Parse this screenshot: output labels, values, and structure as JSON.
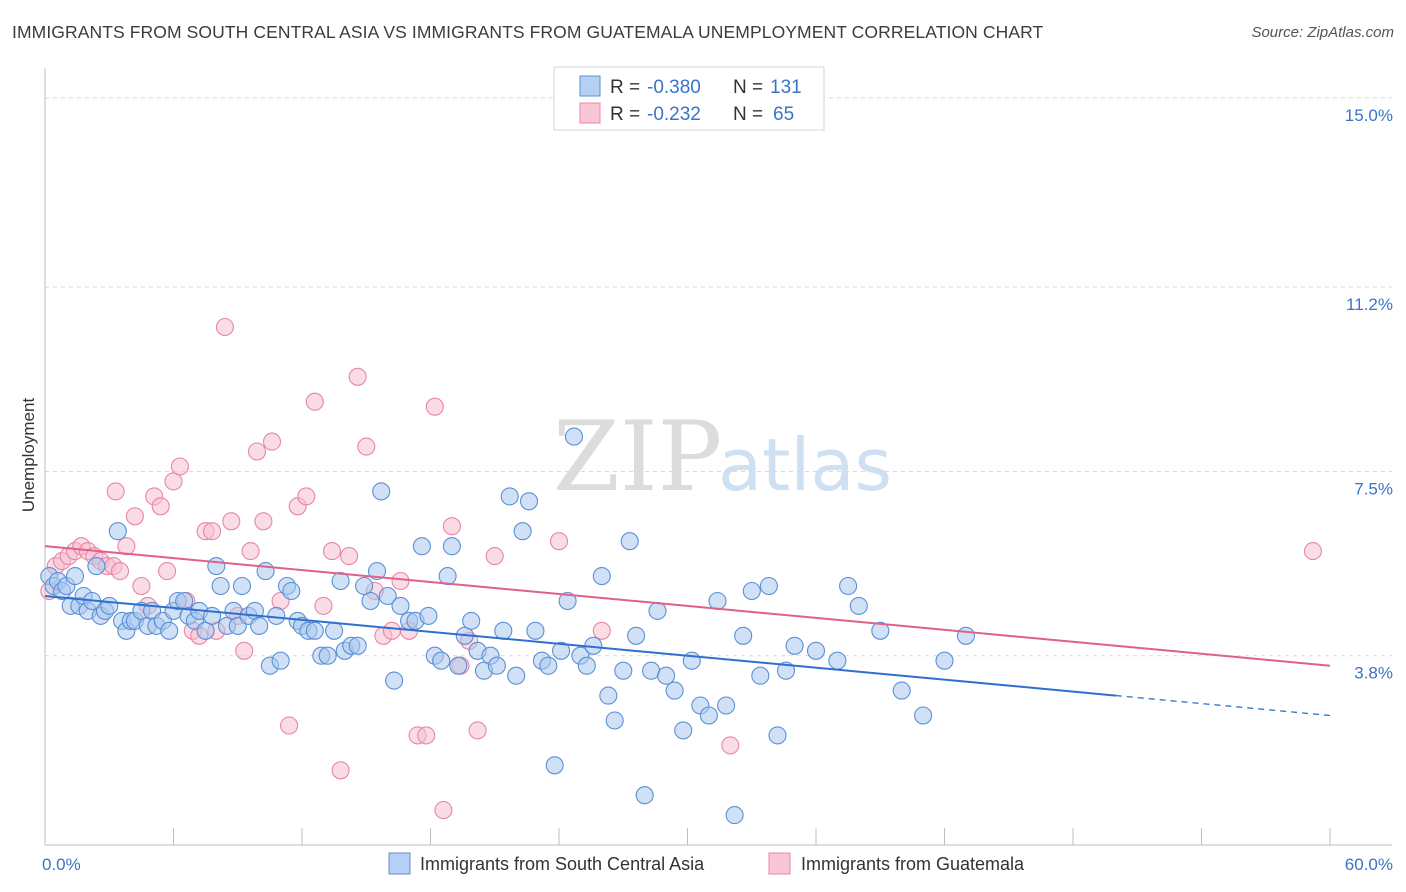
{
  "title": "IMMIGRANTS FROM SOUTH CENTRAL ASIA VS IMMIGRANTS FROM GUATEMALA UNEMPLOYMENT CORRELATION CHART",
  "source": "Source: ZipAtlas.com",
  "watermark": {
    "zip": "ZIP",
    "atlas": "atlas"
  },
  "legend": {
    "r_label": "R =",
    "n_label": "N =",
    "rows": [
      {
        "r": "-0.380",
        "n": "131",
        "color": "#5b8fd6"
      },
      {
        "r": "-0.232",
        "n": "65",
        "color": "#e886a6"
      }
    ]
  },
  "colors": {
    "blue_fill": "#a9c8ef",
    "blue_stroke": "#5b8fd6",
    "blue_line": "#2f6fd0",
    "pink_fill": "#f6bfd0",
    "pink_stroke": "#e886a6",
    "pink_line": "#e0608c",
    "tick_text": "#3a73c8"
  },
  "chart_data": {
    "type": "scatter",
    "title": "IMMIGRANTS FROM SOUTH CENTRAL ASIA VS IMMIGRANTS FROM GUATEMALA UNEMPLOYMENT CORRELATION CHART",
    "xlabel": "",
    "ylabel": "Unemployment",
    "x_tick_labels": [
      "0.0%",
      "60.0%"
    ],
    "y_tick_labels": [
      "3.8%",
      "7.5%",
      "11.2%",
      "15.0%"
    ],
    "y_ticks": [
      3.8,
      7.5,
      11.2,
      15.0
    ],
    "xlim": [
      0,
      60
    ],
    "ylim": [
      0,
      15.4
    ],
    "grid": true,
    "legend_position": "top-center",
    "series": [
      {
        "name": "Immigrants from South Central Asia",
        "color": "#5b8fd6",
        "trend": {
          "x0": 0,
          "y0": 5.0,
          "x1": 60,
          "y1": 2.6,
          "solid_until": 50
        },
        "points": [
          [
            0.2,
            5.4
          ],
          [
            0.4,
            5.2
          ],
          [
            0.6,
            5.3
          ],
          [
            0.8,
            5.1
          ],
          [
            1.0,
            5.2
          ],
          [
            1.2,
            4.8
          ],
          [
            1.4,
            5.4
          ],
          [
            1.6,
            4.8
          ],
          [
            1.8,
            5.0
          ],
          [
            2.0,
            4.7
          ],
          [
            2.2,
            4.9
          ],
          [
            2.4,
            5.6
          ],
          [
            2.6,
            4.6
          ],
          [
            2.8,
            4.7
          ],
          [
            3.0,
            4.8
          ],
          [
            3.4,
            6.3
          ],
          [
            3.6,
            4.5
          ],
          [
            3.8,
            4.3
          ],
          [
            4.0,
            4.5
          ],
          [
            4.2,
            4.5
          ],
          [
            4.5,
            4.7
          ],
          [
            4.8,
            4.4
          ],
          [
            5.0,
            4.7
          ],
          [
            5.2,
            4.4
          ],
          [
            5.5,
            4.5
          ],
          [
            5.8,
            4.3
          ],
          [
            6.0,
            4.7
          ],
          [
            6.2,
            4.9
          ],
          [
            6.5,
            4.9
          ],
          [
            6.7,
            4.6
          ],
          [
            7.0,
            4.5
          ],
          [
            7.2,
            4.7
          ],
          [
            7.5,
            4.3
          ],
          [
            7.8,
            4.6
          ],
          [
            8.0,
            5.6
          ],
          [
            8.2,
            5.2
          ],
          [
            8.5,
            4.4
          ],
          [
            8.8,
            4.7
          ],
          [
            9.0,
            4.4
          ],
          [
            9.2,
            5.2
          ],
          [
            9.5,
            4.6
          ],
          [
            9.8,
            4.7
          ],
          [
            10.0,
            4.4
          ],
          [
            10.3,
            5.5
          ],
          [
            10.5,
            3.6
          ],
          [
            10.8,
            4.6
          ],
          [
            11.0,
            3.7
          ],
          [
            11.3,
            5.2
          ],
          [
            11.5,
            5.1
          ],
          [
            11.8,
            4.5
          ],
          [
            12.0,
            4.4
          ],
          [
            12.3,
            4.3
          ],
          [
            12.6,
            4.3
          ],
          [
            12.9,
            3.8
          ],
          [
            13.2,
            3.8
          ],
          [
            13.5,
            4.3
          ],
          [
            13.8,
            5.3
          ],
          [
            14.0,
            3.9
          ],
          [
            14.3,
            4.0
          ],
          [
            14.6,
            4.0
          ],
          [
            14.9,
            5.2
          ],
          [
            15.2,
            4.9
          ],
          [
            15.5,
            5.5
          ],
          [
            15.7,
            7.1
          ],
          [
            16.0,
            5.0
          ],
          [
            16.3,
            3.3
          ],
          [
            16.6,
            4.8
          ],
          [
            17.0,
            4.5
          ],
          [
            17.3,
            4.5
          ],
          [
            17.6,
            6.0
          ],
          [
            17.9,
            4.6
          ],
          [
            18.2,
            3.8
          ],
          [
            18.5,
            3.7
          ],
          [
            18.8,
            5.4
          ],
          [
            19.0,
            6.0
          ],
          [
            19.3,
            3.6
          ],
          [
            19.6,
            4.2
          ],
          [
            19.9,
            4.5
          ],
          [
            20.2,
            3.9
          ],
          [
            20.5,
            3.5
          ],
          [
            20.8,
            3.8
          ],
          [
            21.1,
            3.6
          ],
          [
            21.4,
            4.3
          ],
          [
            21.7,
            7.0
          ],
          [
            22.0,
            3.4
          ],
          [
            22.3,
            6.3
          ],
          [
            22.6,
            6.9
          ],
          [
            22.9,
            4.3
          ],
          [
            23.2,
            3.7
          ],
          [
            23.5,
            3.6
          ],
          [
            23.8,
            1.6
          ],
          [
            24.1,
            3.9
          ],
          [
            24.4,
            4.9
          ],
          [
            24.7,
            8.2
          ],
          [
            25.0,
            3.8
          ],
          [
            25.3,
            3.6
          ],
          [
            25.6,
            4.0
          ],
          [
            26.0,
            5.4
          ],
          [
            26.3,
            3.0
          ],
          [
            26.6,
            2.5
          ],
          [
            27.0,
            3.5
          ],
          [
            27.3,
            6.1
          ],
          [
            27.6,
            4.2
          ],
          [
            28.0,
            1.0
          ],
          [
            28.3,
            3.5
          ],
          [
            28.6,
            4.7
          ],
          [
            29.0,
            3.4
          ],
          [
            29.4,
            3.1
          ],
          [
            29.8,
            2.3
          ],
          [
            30.2,
            3.7
          ],
          [
            30.6,
            2.8
          ],
          [
            31.0,
            2.6
          ],
          [
            31.4,
            4.9
          ],
          [
            31.8,
            2.8
          ],
          [
            32.2,
            0.6
          ],
          [
            32.6,
            4.2
          ],
          [
            33.0,
            5.1
          ],
          [
            33.4,
            3.4
          ],
          [
            33.8,
            5.2
          ],
          [
            34.2,
            2.2
          ],
          [
            34.6,
            3.5
          ],
          [
            35.0,
            4.0
          ],
          [
            36.0,
            3.9
          ],
          [
            37.0,
            3.7
          ],
          [
            37.5,
            5.2
          ],
          [
            38.0,
            4.8
          ],
          [
            39.0,
            4.3
          ],
          [
            40.0,
            3.1
          ],
          [
            41.0,
            2.6
          ],
          [
            42.0,
            3.7
          ],
          [
            43.0,
            4.2
          ]
        ]
      },
      {
        "name": "Immigrants from Guatemala",
        "color": "#e886a6",
        "trend": {
          "x0": 0,
          "y0": 6.0,
          "x1": 60,
          "y1": 3.6,
          "solid_until": 60
        },
        "points": [
          [
            0.2,
            5.1
          ],
          [
            0.5,
            5.6
          ],
          [
            0.8,
            5.7
          ],
          [
            1.1,
            5.8
          ],
          [
            1.4,
            5.9
          ],
          [
            1.7,
            6.0
          ],
          [
            2.0,
            5.9
          ],
          [
            2.3,
            5.8
          ],
          [
            2.6,
            5.7
          ],
          [
            2.9,
            5.6
          ],
          [
            3.2,
            5.6
          ],
          [
            3.5,
            5.5
          ],
          [
            3.3,
            7.1
          ],
          [
            3.8,
            6.0
          ],
          [
            4.2,
            6.6
          ],
          [
            4.5,
            5.2
          ],
          [
            4.8,
            4.8
          ],
          [
            5.1,
            7.0
          ],
          [
            5.4,
            6.8
          ],
          [
            5.7,
            5.5
          ],
          [
            6.0,
            7.3
          ],
          [
            6.3,
            7.6
          ],
          [
            6.6,
            4.9
          ],
          [
            6.9,
            4.3
          ],
          [
            7.2,
            4.2
          ],
          [
            7.5,
            6.3
          ],
          [
            7.8,
            6.3
          ],
          [
            8.0,
            4.3
          ],
          [
            8.4,
            10.4
          ],
          [
            8.7,
            6.5
          ],
          [
            9.0,
            4.6
          ],
          [
            9.3,
            3.9
          ],
          [
            9.6,
            5.9
          ],
          [
            9.9,
            7.9
          ],
          [
            10.2,
            6.5
          ],
          [
            10.6,
            8.1
          ],
          [
            11.0,
            4.9
          ],
          [
            11.4,
            2.4
          ],
          [
            11.8,
            6.8
          ],
          [
            12.2,
            7.0
          ],
          [
            12.6,
            8.9
          ],
          [
            13.0,
            4.8
          ],
          [
            13.4,
            5.9
          ],
          [
            13.8,
            1.5
          ],
          [
            14.2,
            5.8
          ],
          [
            14.6,
            9.4
          ],
          [
            15.0,
            8.0
          ],
          [
            15.4,
            5.1
          ],
          [
            15.8,
            4.2
          ],
          [
            16.2,
            4.3
          ],
          [
            16.6,
            5.3
          ],
          [
            17.0,
            4.3
          ],
          [
            17.4,
            2.2
          ],
          [
            17.8,
            2.2
          ],
          [
            18.2,
            8.8
          ],
          [
            18.6,
            0.7
          ],
          [
            19.0,
            6.4
          ],
          [
            19.4,
            3.6
          ],
          [
            19.8,
            4.1
          ],
          [
            20.2,
            2.3
          ],
          [
            21.0,
            5.8
          ],
          [
            24.0,
            6.1
          ],
          [
            26.0,
            4.3
          ],
          [
            32.0,
            2.0
          ],
          [
            59.2,
            5.9
          ]
        ]
      }
    ]
  }
}
